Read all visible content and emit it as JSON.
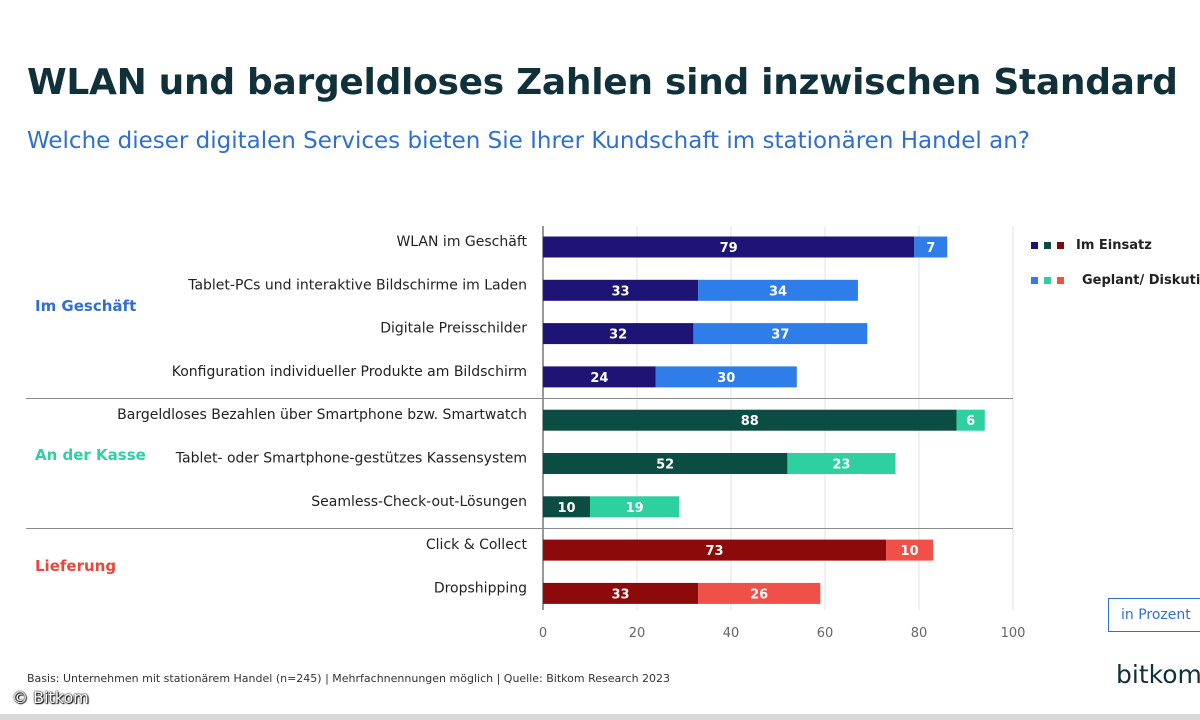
{
  "title": "WLAN und bargeldloses Zahlen sind inzwischen Standard",
  "subtitle": "Welche dieser digitalen Services bieten Sie Ihrer Kundschaft im stationären Handel an?",
  "footnote": "Basis: Unternehmen mit stationärem Handel (n=245) | Mehrfachnennungen möglich | Quelle: Bitkom Research 2023",
  "unit_label": "in Prozent",
  "logo_text": "bitkom",
  "copyright": "© Bitkom",
  "legend": {
    "in_use": "Im Einsatz",
    "planned": "Geplant/ Diskutiert",
    "in_use_swatches": [
      "#1e1476",
      "#0b4d42",
      "#7a0b0b"
    ],
    "planned_swatches": [
      "#2f7de8",
      "#2fd0a0",
      "#f05048"
    ]
  },
  "groups": [
    {
      "label": "Im Geschäft",
      "color": "#2f6fd1",
      "dark": "#1e1476",
      "light": "#2f7de8"
    },
    {
      "label": "An der Kasse",
      "color": "#2fd0a0",
      "dark": "#0b4d42",
      "light": "#2fd0a0"
    },
    {
      "label": "Lieferung",
      "color": "#e8473c",
      "dark": "#8c0a0a",
      "light": "#f05048"
    }
  ],
  "chart_data": {
    "type": "bar",
    "orientation": "horizontal",
    "stacked": true,
    "categories": [
      "WLAN im Geschäft",
      "Tablet-PCs und interaktive Bildschirme im Laden",
      "Digitale Preisschilder",
      "Konfiguration individueller Produkte am Bildschirm",
      "Bargeldloses Bezahlen über Smartphone bzw. Smartwatch",
      "Tablet- oder Smartphone-gestützes Kassensystem",
      "Seamless-Check-out-Lösungen",
      "Click & Collect",
      "Dropshipping"
    ],
    "category_group": [
      0,
      0,
      0,
      0,
      1,
      1,
      1,
      2,
      2
    ],
    "series": [
      {
        "name": "Im Einsatz",
        "values": [
          79,
          33,
          32,
          24,
          88,
          52,
          10,
          73,
          33
        ]
      },
      {
        "name": "Geplant/ Diskutiert",
        "values": [
          7,
          34,
          37,
          30,
          6,
          23,
          19,
          10,
          26
        ]
      }
    ],
    "xlim": [
      0,
      100
    ],
    "xticks": [
      0,
      20,
      40,
      60,
      80,
      100
    ],
    "grid": true,
    "legend_position": "top-right"
  }
}
